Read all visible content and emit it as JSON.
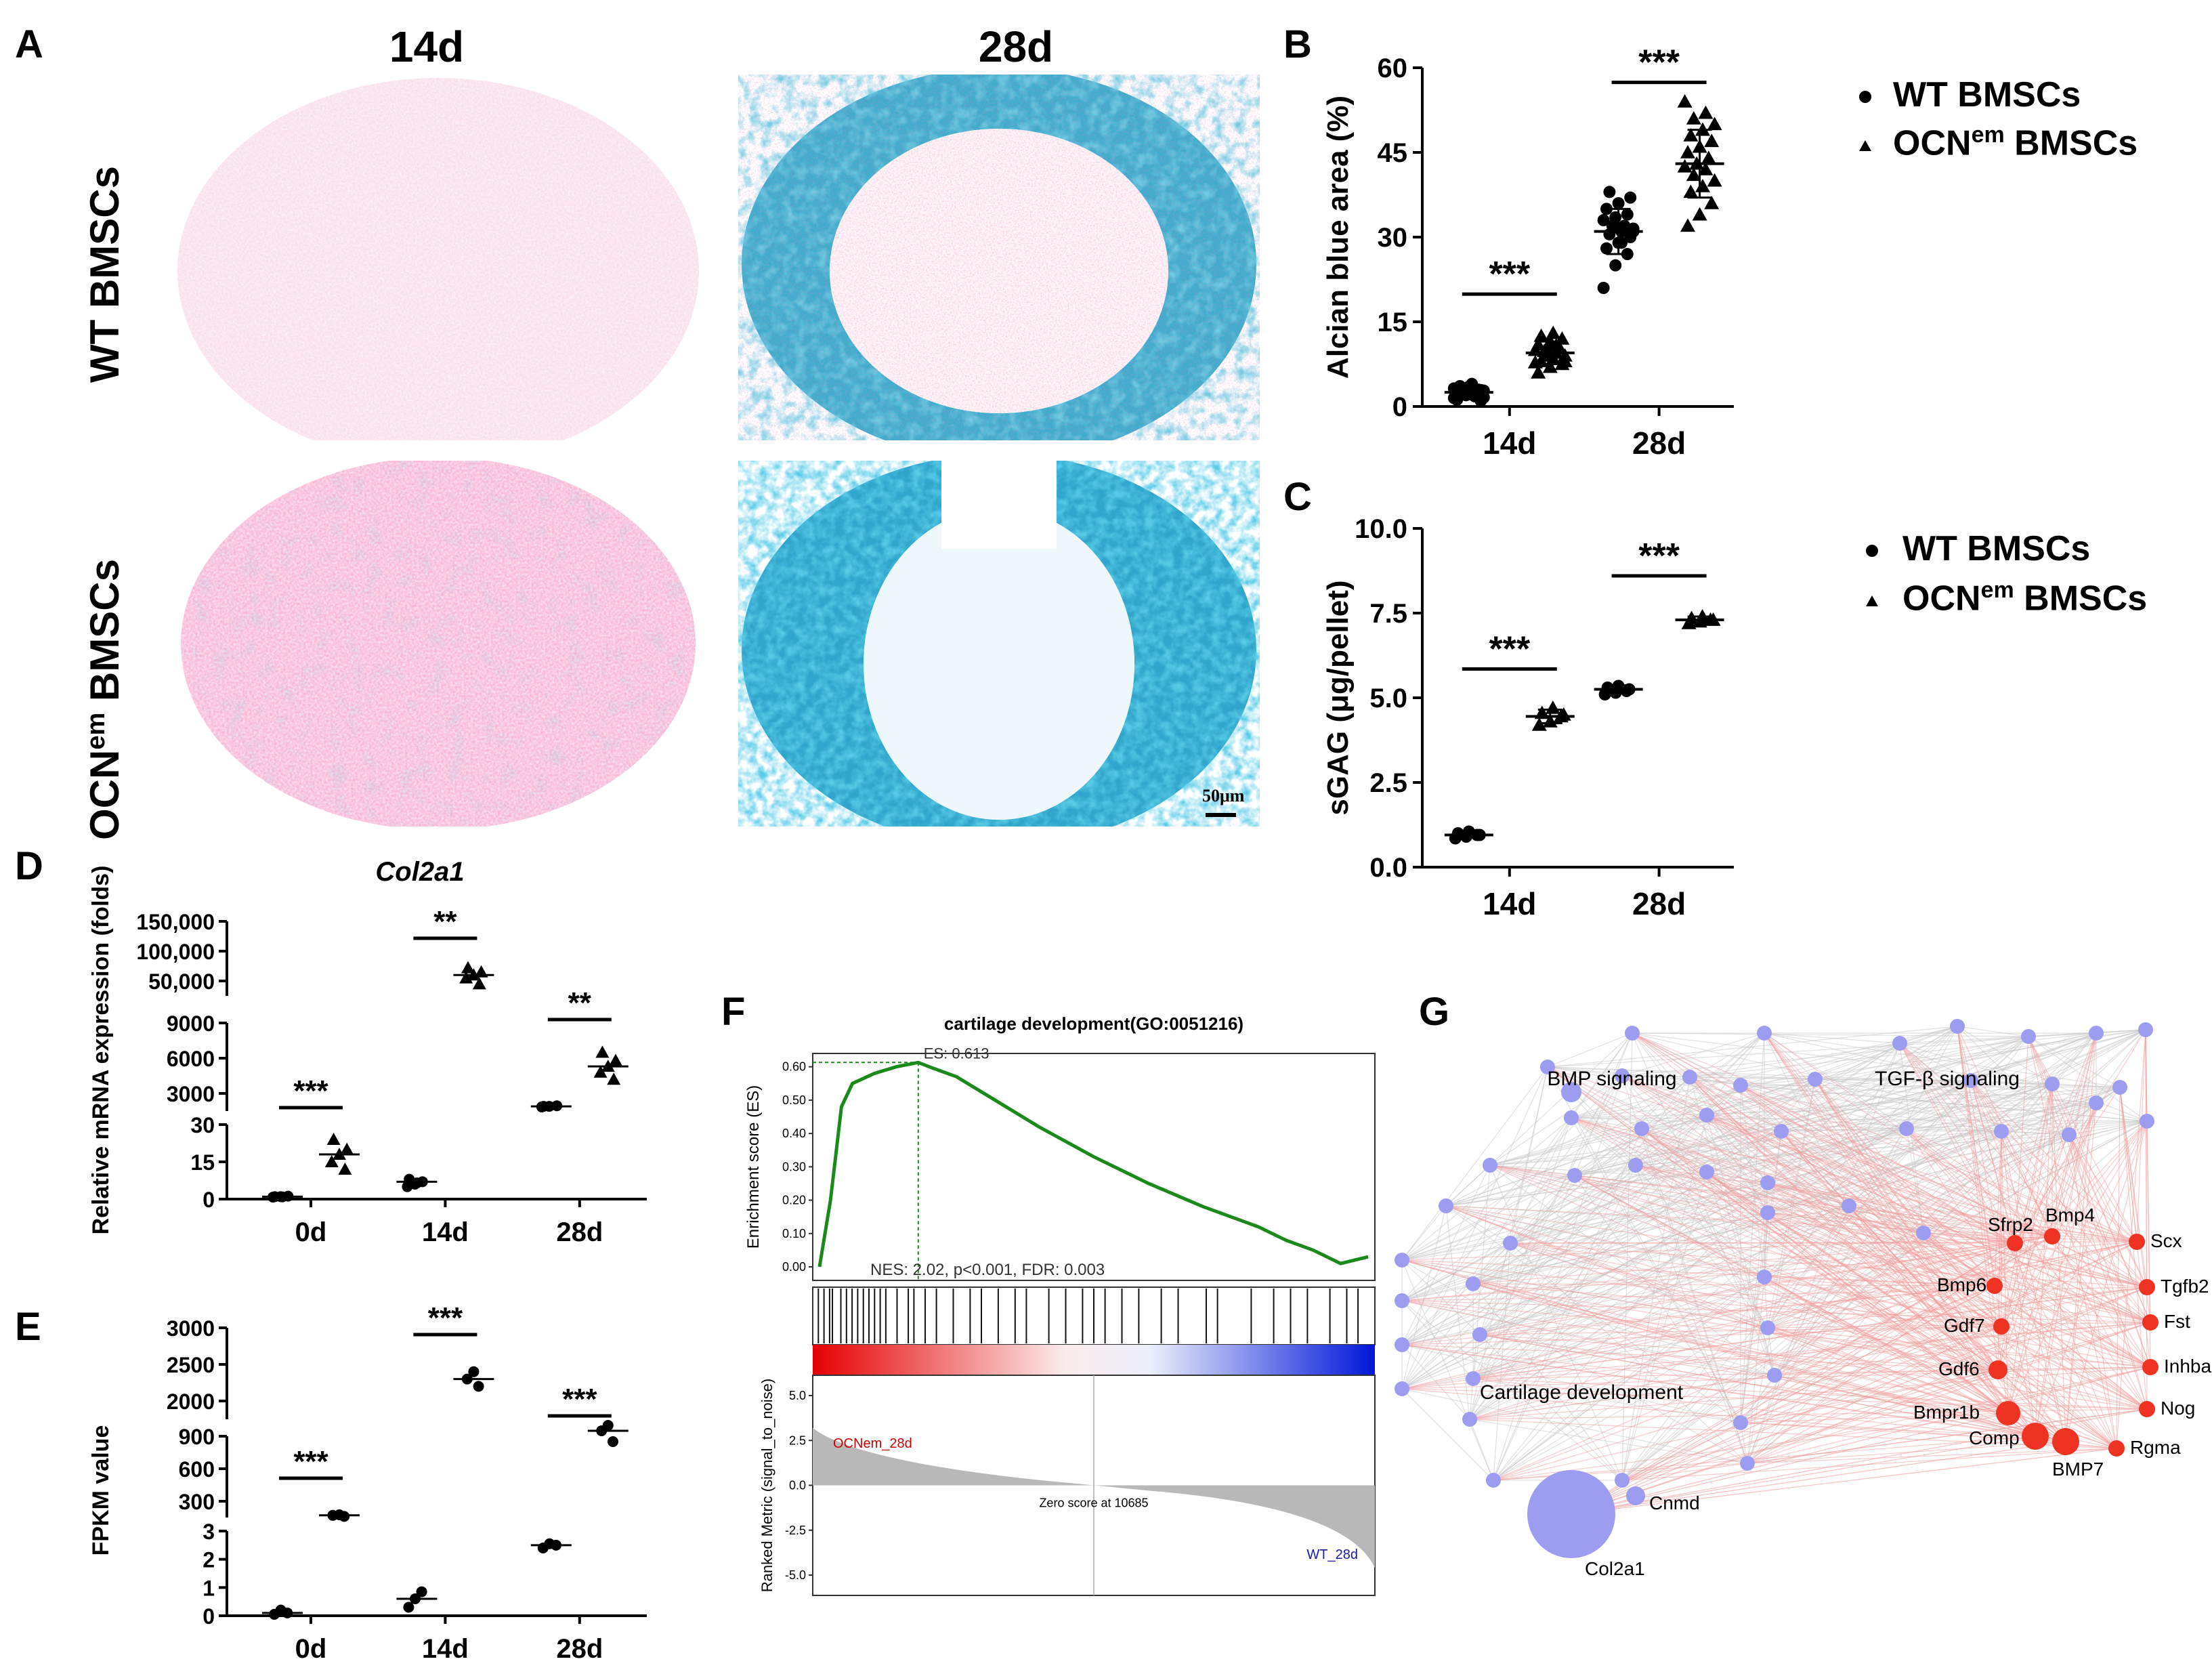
{
  "panels": {
    "A": {
      "letter": "A",
      "col_headers": [
        "14d",
        "28d"
      ],
      "row_labels": {
        "wt": "WT BMSCs",
        "ocn_base": "OCN",
        "ocn_sup": "em",
        "ocn_tail": " BMSCs"
      },
      "scale_bar": "50μm"
    },
    "B": {
      "letter": "B"
    },
    "C": {
      "letter": "C"
    },
    "D": {
      "letter": "D"
    },
    "E": {
      "letter": "E"
    },
    "F": {
      "letter": "F"
    },
    "G": {
      "letter": "G"
    }
  },
  "legend": {
    "wt": "WT BMSCs",
    "ocn_base": "OCN",
    "ocn_sup": "em",
    "ocn_tail": " BMSCs"
  },
  "sig": {
    "three": "***",
    "two": "**"
  },
  "chart_data": [
    {
      "id": "B",
      "type": "scatter",
      "ylabel": "Alcian blue area (%)",
      "categories": [
        "14d",
        "28d"
      ],
      "ylim": [
        0,
        60
      ],
      "yticks": [
        0,
        15,
        30,
        45,
        60
      ],
      "series": [
        {
          "name": "WT BMSCs",
          "marker": "circle",
          "mean": [
            2.5,
            31
          ],
          "sd": [
            1.2,
            4
          ],
          "points": [
            [
              1.5,
              2,
              2.5,
              3,
              3.5,
              1,
              2,
              4,
              2.8,
              2.2,
              1.8,
              3.2,
              2.6,
              3,
              1.2,
              2.4,
              2.9,
              3.6,
              2.1,
              1.6
            ],
            [
              21,
              25,
              27,
              28,
              29,
              30,
              30.5,
              31,
              31.5,
              32,
              32,
              33,
              33.5,
              34,
              35,
              36,
              37,
              38,
              29,
              31
            ]
          ]
        },
        {
          "name": "OCNem BMSCs",
          "marker": "triangle",
          "mean": [
            9.5,
            43
          ],
          "sd": [
            2,
            6
          ],
          "points": [
            [
              6,
              7,
              7.5,
              8,
              8.5,
              9,
              9,
              9.5,
              10,
              10,
              10.5,
              11,
              11.5,
              12,
              12.5,
              13,
              8,
              9.8,
              10.8,
              7.8
            ],
            [
              32,
              34,
              36,
              38,
              39,
              40,
              41,
              42,
              42.5,
              43,
              44,
              45,
              46,
              47,
              48,
              49,
              50,
              51,
              52,
              54
            ]
          ]
        }
      ],
      "significance": [
        "***",
        "***"
      ]
    },
    {
      "id": "C",
      "type": "scatter",
      "ylabel": "sGAG (μg/pellet)",
      "categories": [
        "14d",
        "28d"
      ],
      "ylim": [
        0,
        10
      ],
      "yticks": [
        "0.0",
        "2.5",
        "5.0",
        "7.5",
        "10.0"
      ],
      "series": [
        {
          "name": "WT BMSCs",
          "marker": "circle",
          "mean": [
            0.95,
            5.25
          ],
          "sd": [
            0.08,
            0.12
          ],
          "points": [
            [
              0.85,
              0.9,
              0.95,
              1.0,
              1.05,
              0.95
            ],
            [
              5.1,
              5.15,
              5.2,
              5.3,
              5.35,
              5.25
            ]
          ]
        },
        {
          "name": "OCNem BMSCs",
          "marker": "triangle",
          "mean": [
            4.45,
            7.3
          ],
          "sd": [
            0.2,
            0.1
          ],
          "points": [
            [
              4.2,
              4.3,
              4.45,
              4.55,
              4.7,
              4.5
            ],
            [
              7.2,
              7.25,
              7.3,
              7.35,
              7.4,
              7.3
            ]
          ]
        }
      ],
      "significance": [
        "***",
        "***"
      ]
    },
    {
      "id": "D",
      "type": "scatter",
      "title": "Col2a1",
      "ylabel": "Relative mRNA expression (folds)",
      "categories": [
        "0d",
        "14d",
        "28d"
      ],
      "segments": [
        {
          "range": [
            0,
            30
          ],
          "ticks": [
            "0",
            "15",
            "30"
          ]
        },
        {
          "range": [
            0,
            9000
          ],
          "ticks": [
            "3000",
            "6000",
            "9000"
          ]
        },
        {
          "range": [
            0,
            150000
          ],
          "ticks": [
            "50,000",
            "100,000",
            "150,000"
          ]
        }
      ],
      "series": [
        {
          "name": "WT",
          "marker": "circle",
          "values": [
            1,
            7,
            1900
          ],
          "points": [
            [
              0.8,
              1,
              1.2,
              1,
              0.9
            ],
            [
              5,
              6,
              7,
              8,
              6.5
            ],
            [
              1850,
              1900,
              1950,
              1900
            ]
          ]
        },
        {
          "name": "OCNem",
          "marker": "triangle",
          "values": [
            18,
            60000,
            5300
          ],
          "points": [
            [
              12,
              15,
              18,
              20,
              24
            ],
            [
              45000,
              55000,
              60000,
              65000,
              72000
            ],
            [
              4200,
              4800,
              5300,
              5800,
              6500
            ]
          ]
        }
      ],
      "significance": [
        "***",
        "**",
        "**"
      ]
    },
    {
      "id": "E",
      "type": "scatter",
      "ylabel": "FPKM value",
      "categories": [
        "0d",
        "14d",
        "28d"
      ],
      "segments": [
        {
          "range": [
            0,
            3
          ],
          "ticks": [
            "0",
            "1",
            "2",
            "3"
          ]
        },
        {
          "range": [
            0,
            900
          ],
          "ticks": [
            "300",
            "600",
            "900"
          ]
        },
        {
          "range": [
            2000,
            3000
          ],
          "ticks": [
            "2000",
            "2500",
            "3000"
          ]
        }
      ],
      "series": [
        {
          "name": "WT",
          "marker": "circle",
          "values": [
            0.1,
            0.6,
            2.5
          ],
          "points": [
            [
              0.05,
              0.2,
              0.1
            ],
            [
              0.3,
              0.6,
              0.85
            ],
            [
              2.4,
              2.55,
              2.5
            ]
          ]
        },
        {
          "name": "OCNem",
          "marker": "circle",
          "values": [
            170,
            2300,
            950
          ],
          "points": [
            [
              160,
              170,
              175
            ],
            [
              2200,
              2300,
              2400
            ],
            [
              850,
              950,
              1000
            ]
          ]
        }
      ],
      "significance": [
        "***",
        "***",
        "***"
      ]
    },
    {
      "id": "F",
      "type": "line",
      "title": "cartilage development(GO:0051216)",
      "ylabel": "Enrichment score (ES)",
      "yticks": [
        "0.00",
        "0.10",
        "0.20",
        "0.30",
        "0.40",
        "0.50",
        "0.60"
      ],
      "es_label": "ES: 0.613",
      "stats": "NES: 2.02, p<0.001, FDR: 0.003",
      "lower_ylabel": "Ranked Metric (signal_to_noise)",
      "lower_yticks": [
        "5.0",
        "2.5",
        "0.0",
        "-2.5",
        "-5.0"
      ],
      "left_label": "OCNem_28d",
      "right_label": "WT_28d",
      "zero_label": "Zero score at 10685",
      "x": [
        0,
        0.02,
        0.04,
        0.06,
        0.1,
        0.14,
        0.18,
        0.2,
        0.25,
        0.3,
        0.4,
        0.5,
        0.6,
        0.7,
        0.8,
        0.85,
        0.9,
        0.95,
        1.0
      ],
      "es": [
        0,
        0.2,
        0.48,
        0.55,
        0.58,
        0.6,
        0.613,
        0.6,
        0.57,
        0.52,
        0.42,
        0.33,
        0.25,
        0.18,
        0.12,
        0.08,
        0.05,
        0.01,
        0.03
      ]
    }
  ],
  "network": {
    "labels": {
      "bmp": "BMP signaling",
      "tgf": "TGF-β signaling",
      "cart": "Cartilage development"
    },
    "red_genes": [
      "Sfrp2",
      "Bmp4",
      "Scx",
      "Bmp6",
      "Tgfb2",
      "Gdf7",
      "Fst",
      "Gdf6",
      "Inhba",
      "Bmpr1b",
      "Nog",
      "Comp",
      "Rgma",
      "BMP7"
    ],
    "blue_genes": [
      "Cnmd",
      "Col2a1"
    ]
  }
}
